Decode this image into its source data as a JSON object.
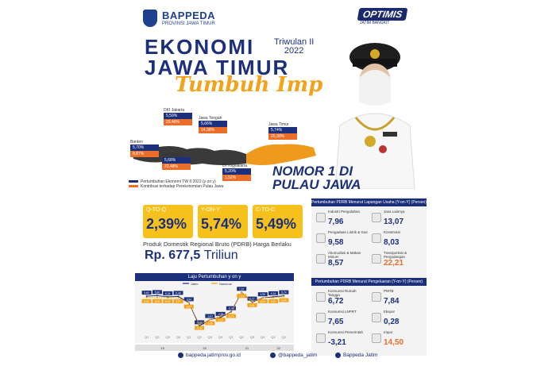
{
  "header": {
    "org": "BAPPEDA",
    "org_sub": "PROVINSI JAWA TIMUR",
    "optimis": "OPTIMIS",
    "optimis_sub": "JATIM BANGKIT"
  },
  "title": {
    "line1": "EKONOMI",
    "line2": "JAWA TIMUR",
    "period1": "Triwulan II",
    "period2": "2022",
    "line3": "Tumbuh Impresif"
  },
  "map": {
    "regions": [
      {
        "name": "DKI Jakarta",
        "growth": "5,59%",
        "contribution": "29,46%"
      },
      {
        "name": "Jawa Tengah",
        "growth": "5,66%",
        "contribution": "14,38%"
      },
      {
        "name": "Jawa Timur",
        "growth": "5,74%",
        "contribution": "25,30%"
      },
      {
        "name": "Banten",
        "growth": "5,70%",
        "contribution": "8,87%"
      },
      {
        "name": "Jawa Barat",
        "growth": "5,68%",
        "contribution": "22,48%"
      },
      {
        "name": "DI Yogyakarta",
        "growth": "5,20%",
        "contribution": "1,52%"
      }
    ],
    "legend_growth": "Pertumbuhan Ekonomi TW II 2022 (y on y)",
    "legend_contrib": "Kontribusi terhadap Perekonomian Pulau Jawa"
  },
  "nomor": {
    "line1": "NOMOR 1 DI",
    "line2": "PULAU JAWA"
  },
  "kpis": [
    {
      "label": "Q-TO-Q",
      "value": "2,39%"
    },
    {
      "label": "Y-ON-Y",
      "value": "5,74%"
    },
    {
      "label": "C-TO-C",
      "value": "5,49%"
    }
  ],
  "pdrb": {
    "label": "Produk Domestik Regional Bruto (PDRB) Harga Berlaku",
    "value": "Rp. 677,5",
    "unit": "Triliun"
  },
  "chart_data": {
    "type": "line",
    "title": "Laju Pertumbuhan y on y",
    "categories": [
      "Q1",
      "Q2",
      "Q3",
      "Q4",
      "Q1",
      "Q2",
      "Q3",
      "Q4",
      "Q1",
      "Q2",
      "Q3",
      "Q4",
      "Q1",
      "Q2"
    ],
    "year_labels": [
      "19",
      "20",
      "21",
      "22"
    ],
    "series": [
      {
        "name": "Jatim",
        "color": "#1c2f7a",
        "values": [
          5.6,
          5.8,
          5.34,
          5.49,
          3.04,
          -5.9,
          -3.47,
          -2.65,
          -0.44,
          7.07,
          3.27,
          4.95,
          5.34,
          5.74
        ],
        "labels": [
          "5,60",
          "5,80",
          "5,34",
          "5,49",
          "3,04",
          "-5,90",
          "-3,47",
          "-2,65",
          "-0,44",
          "7,07",
          "3,27",
          "4,95",
          "5,34",
          "5,74"
        ]
      },
      {
        "name": "Nasional",
        "color": "#f3a21a",
        "values": [
          5.06,
          5.05,
          5.01,
          4.97,
          2.97,
          -5.32,
          -3.49,
          -2.17,
          -0.71,
          7.07,
          3.51,
          5.02,
          5.01,
          5.44
        ],
        "labels": [
          "5,06",
          "5,05",
          "5,01",
          "4,97",
          "2,97",
          "-5,32",
          "-3,49",
          "-2,17",
          "-0,71",
          "7,07",
          "3,51",
          "5,02",
          "5,01",
          "5,44"
        ]
      }
    ],
    "ylim": [
      -7,
      9
    ]
  },
  "right": {
    "usaha_title": "Pertumbuhan PDRB Menurut Lapangan Usaha (Y-on-Y) (Persen)",
    "usaha": [
      {
        "label": "Industri Pengolahan",
        "value": "7,96",
        "orange": false
      },
      {
        "label": "Jasa Lainnya",
        "value": "13,07",
        "orange": false
      },
      {
        "label": "Pengadaan Listrik & Gas",
        "value": "9,58",
        "orange": false
      },
      {
        "label": "Konstruksi",
        "value": "8,03",
        "orange": false
      },
      {
        "label": "Akomodasi & Makan Minum",
        "value": "8,57",
        "orange": false
      },
      {
        "label": "Transportasi & Pergudangan",
        "value": "22,21",
        "orange": true
      }
    ],
    "pengeluaran_title": "Pertumbuhan PDRB Menurut Pengeluaran (Y-on-Y) (Persen)",
    "pengeluaran": [
      {
        "label": "Konsumsi Rumah Tangga",
        "value": "6,72",
        "orange": false
      },
      {
        "label": "PMTB",
        "value": "7,84",
        "orange": false
      },
      {
        "label": "Konsumsi LNPRT",
        "value": "7,65",
        "orange": false
      },
      {
        "label": "Ekspor",
        "value": "0,28",
        "orange": false
      },
      {
        "label": "Konsumsi Pemerintah",
        "value": "-3,21",
        "orange": false
      },
      {
        "label": "Impor",
        "value": "14,50",
        "orange": true
      }
    ]
  },
  "footer": {
    "web": "bappeda.jatimprov.go.id",
    "ig": "@bappeda_jatim",
    "fb": "Bappeda Jatim"
  }
}
